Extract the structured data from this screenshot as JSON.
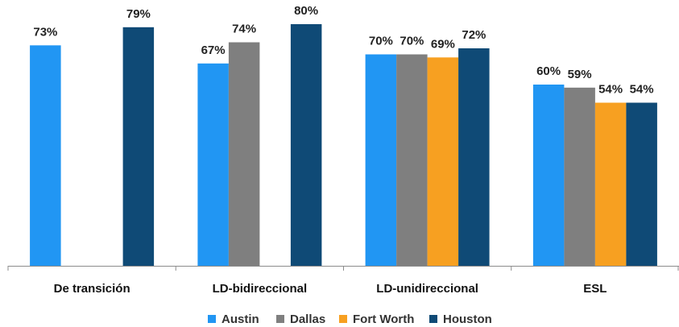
{
  "chart_data": {
    "type": "bar",
    "categories": [
      "De transición",
      "LD-bidireccional",
      "LD-unidireccional",
      "ESL"
    ],
    "series": [
      {
        "name": "Austin",
        "values": [
          73,
          67,
          70,
          60
        ],
        "color": "#2196F3"
      },
      {
        "name": "Dallas",
        "values": [
          null,
          74,
          70,
          59
        ],
        "color": "#7F7F7F"
      },
      {
        "name": "Fort Worth",
        "values": [
          null,
          null,
          69,
          54
        ],
        "color": "#F7A021"
      },
      {
        "name": "Houston",
        "values": [
          79,
          80,
          72,
          54
        ],
        "color": "#0F4A76"
      }
    ],
    "value_suffix": "%",
    "ylim": [
      0,
      100
    ],
    "grid": false,
    "legend_position": "bottom",
    "title": "",
    "xlabel": "",
    "ylabel": ""
  }
}
